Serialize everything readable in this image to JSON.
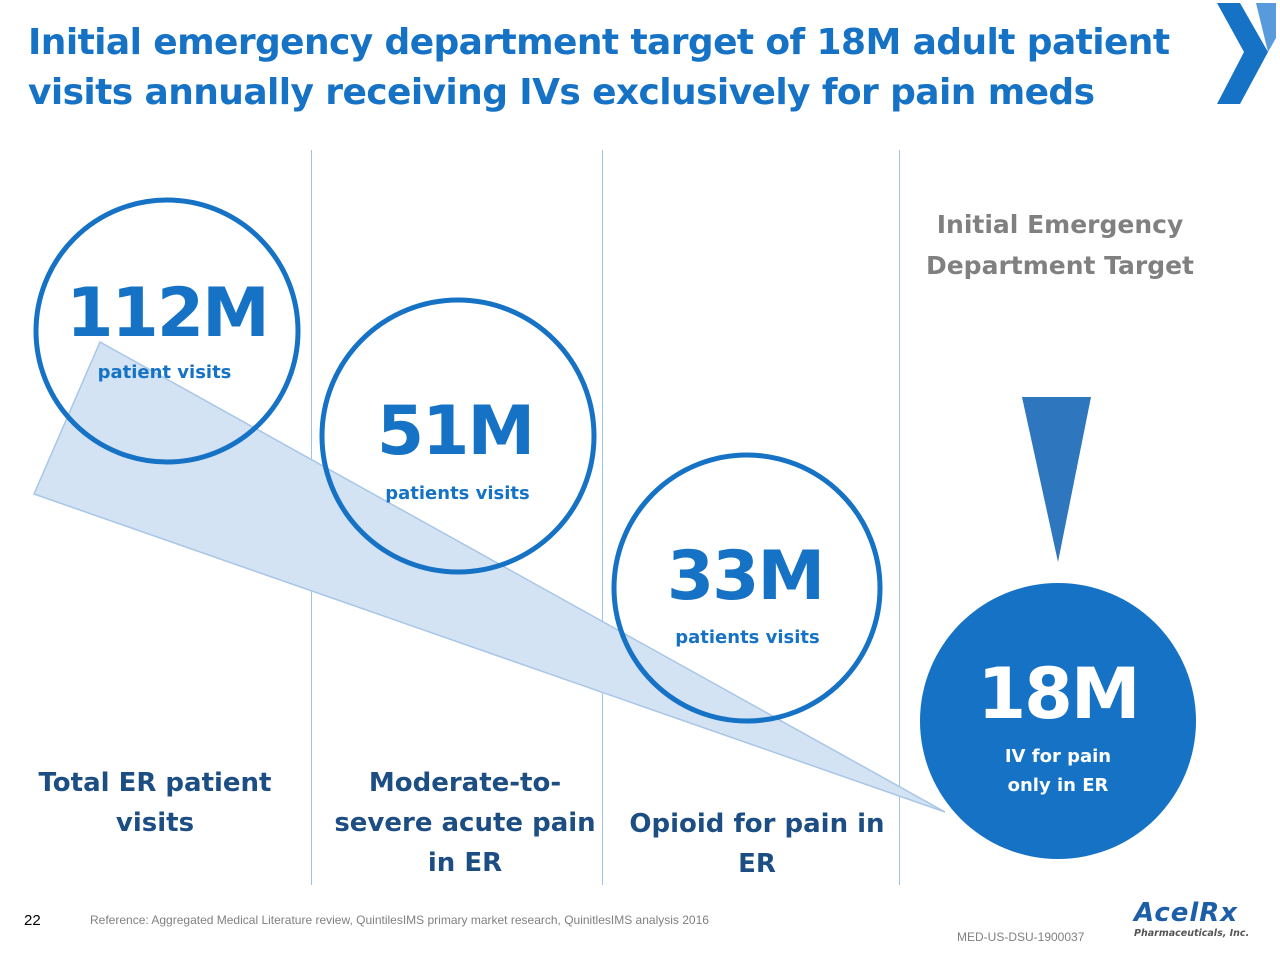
{
  "title": {
    "line1": "Initial emergency department target of 18M adult patient",
    "line2": "visits annually receiving IVs exclusively for pain meds"
  },
  "stages": [
    {
      "value": "112M",
      "unit": "patient visits",
      "caption": [
        "Total ER patient",
        "visits"
      ]
    },
    {
      "value": "51M",
      "unit": "patients visits",
      "caption": [
        "Moderate-to-",
        "severe acute pain",
        "in ER"
      ]
    },
    {
      "value": "33M",
      "unit": "patients visits",
      "caption": [
        "Opioid for pain in",
        "ER"
      ]
    },
    {
      "value": "18M",
      "unit": [
        "IV for pain",
        "only in ER"
      ]
    }
  ],
  "target_label": [
    "Initial Emergency",
    "Department Target"
  ],
  "footer": {
    "page_number": "22",
    "reference": "Reference: Aggregated Medical Literature review, QuintilesIMS primary market research, QuinitlesIMS analysis 2016",
    "doc_code": "MED-US-DSU-1900037",
    "brand_name": "AcelRx",
    "brand_sub": "Pharmaceuticals, Inc."
  },
  "colors": {
    "primary_blue": "#1672c4",
    "dark_blue": "#1c4e84",
    "funnel_fill": "#d3e3f4",
    "target_gray": "#808080"
  },
  "icons": [
    "chevron-logo-icon",
    "down-arrow-icon"
  ]
}
